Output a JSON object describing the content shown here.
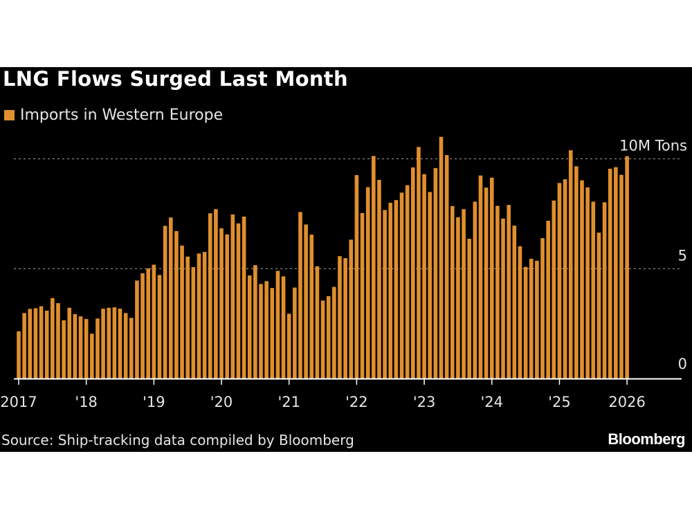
{
  "title": "LNG Flows Surged Last Month",
  "source": "Source: Ship-tracking data compiled by Bloomberg",
  "logo": "Bloomberg",
  "chart_data": {
    "type": "bar",
    "title": "LNG Flows Surged Last Month",
    "legend": {
      "position": "top-left",
      "entries": [
        "Imports in Western Europe"
      ]
    },
    "series": [
      {
        "name": "Imports in Western Europe",
        "color": "#e08f2e",
        "start": "2017-01",
        "frequency": "monthly",
        "values": [
          2.15,
          2.98,
          3.17,
          3.2,
          3.29,
          3.09,
          3.66,
          3.43,
          2.65,
          3.22,
          2.93,
          2.83,
          2.71,
          2.04,
          2.73,
          3.18,
          3.22,
          3.24,
          3.18,
          2.98,
          2.76,
          4.46,
          4.79,
          5.01,
          5.18,
          4.71,
          6.95,
          7.33,
          6.71,
          6.05,
          5.55,
          5.07,
          5.69,
          5.76,
          7.52,
          7.71,
          6.84,
          6.56,
          7.47,
          7.06,
          7.37,
          4.69,
          5.16,
          4.3,
          4.43,
          4.12,
          4.9,
          4.65,
          2.95,
          4.14,
          7.58,
          7.01,
          6.55,
          5.11,
          3.55,
          3.75,
          4.17,
          5.57,
          5.48,
          6.32,
          9.26,
          7.53,
          8.71,
          10.13,
          9.04,
          7.67,
          8.0,
          8.12,
          8.46,
          8.8,
          9.61,
          10.54,
          9.3,
          8.49,
          9.58,
          11.0,
          10.17,
          7.85,
          7.34,
          7.71,
          6.36,
          8.05,
          9.24,
          8.69,
          9.14,
          7.86,
          7.28,
          7.9,
          6.96,
          6.02,
          5.08,
          5.45,
          5.36,
          6.39,
          7.18,
          8.1,
          8.9,
          9.07,
          10.39,
          9.66,
          9.02,
          8.7,
          8.05,
          6.64,
          8.02,
          9.55,
          9.62,
          9.27,
          10.12
        ]
      }
    ],
    "x_tick_labels": [
      "2017",
      "'18",
      "'19",
      "'20",
      "'21",
      "'22",
      "'23",
      "'24",
      "'25",
      "2026"
    ],
    "y_ticks": [
      {
        "value": 0,
        "label": "0"
      },
      {
        "value": 5,
        "label": "5"
      },
      {
        "value": 10,
        "label": "10M Tons"
      }
    ],
    "ylim": [
      0,
      11
    ],
    "ylabel": "",
    "xlabel": "",
    "grid": "horizontal dotted",
    "y_axis_position": "right"
  }
}
